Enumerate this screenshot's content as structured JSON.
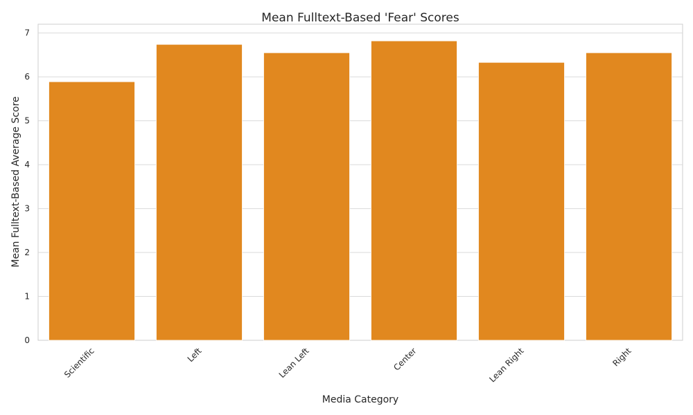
{
  "chart_data": {
    "type": "bar",
    "title": "Mean Fulltext-Based 'Fear' Scores",
    "xlabel": "Media Category",
    "ylabel": "Mean Fulltext-Based Average Score",
    "categories": [
      "Scientific",
      "Left",
      "Lean Left",
      "Center",
      "Lean Right",
      "Right"
    ],
    "values": [
      5.89,
      6.74,
      6.55,
      6.82,
      6.33,
      6.55
    ],
    "ylim": [
      0,
      7.2
    ],
    "yticks": [
      "0",
      "1",
      "2",
      "3",
      "4",
      "5",
      "6",
      "7"
    ],
    "grid": "horizontal",
    "legend": "none",
    "bar_color": "#e1881f",
    "grid_color": "#d9d9d9"
  }
}
